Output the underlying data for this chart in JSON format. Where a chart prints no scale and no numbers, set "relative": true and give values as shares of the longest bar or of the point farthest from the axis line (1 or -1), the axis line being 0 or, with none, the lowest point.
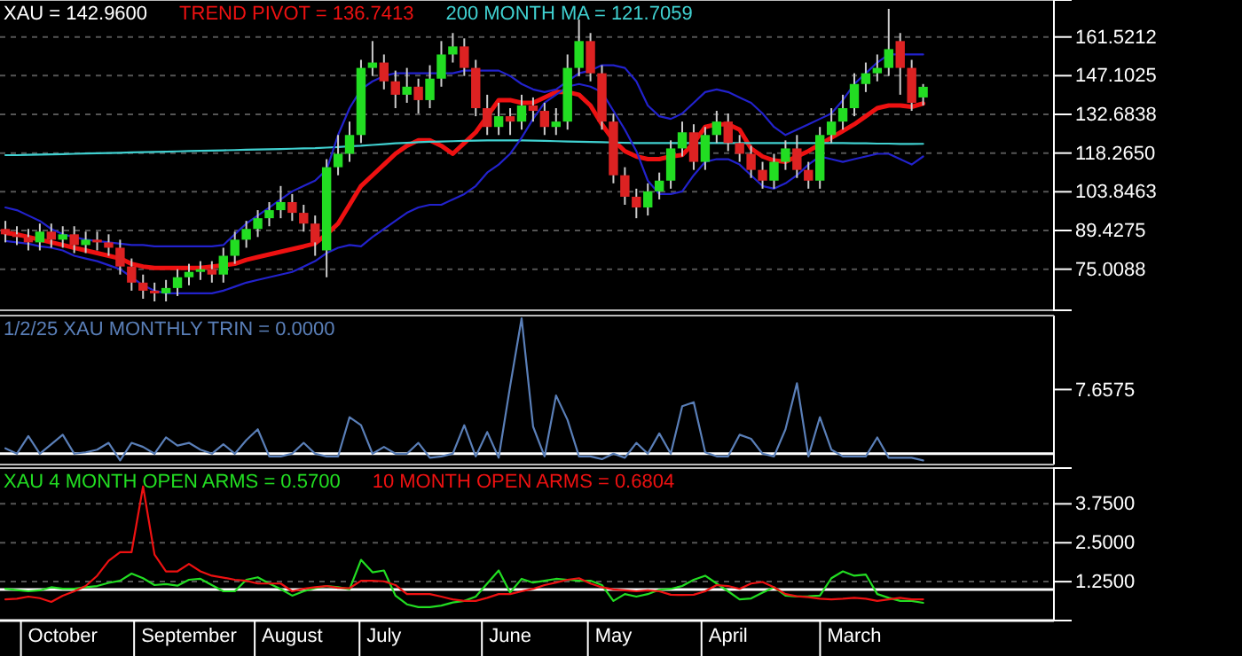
{
  "chart_data": [
    {
      "type": "candlestick",
      "title": "XAU = 142.9600",
      "legend": "top left",
      "grid": "y",
      "tick_labels": "y",
      "categories": [
        null,
        null,
        null,
        null,
        null,
        null,
        null,
        null,
        null,
        null,
        null,
        null,
        null,
        null,
        null,
        null,
        null,
        null,
        null,
        null,
        null,
        null,
        null,
        null,
        null,
        null,
        null,
        null,
        null,
        null,
        null,
        null,
        null,
        null,
        null,
        null,
        null,
        null,
        null,
        null,
        null,
        null,
        null,
        null,
        null,
        null,
        null,
        null,
        null,
        null,
        null,
        null,
        null,
        null,
        null,
        null,
        null,
        null,
        null,
        null,
        null,
        null,
        null,
        null,
        null,
        null,
        null,
        null,
        null,
        null,
        null,
        null,
        null,
        null,
        null,
        null,
        null,
        null,
        null,
        null,
        null
      ],
      "ylim": [
        59.7,
        175.3
      ],
      "yticks": [
        75.0088,
        89.4275,
        103.8463,
        {
          "value": 118.265,
          "label": "118.2650"
        },
        132.6838,
        147.1025,
        161.5212
      ],
      "ohlc": [
        [
          90,
          93,
          85,
          88
        ],
        [
          88,
          91,
          84,
          87
        ],
        [
          87,
          90,
          82,
          85
        ],
        [
          85,
          92,
          82,
          89
        ],
        [
          89,
          92,
          83,
          86
        ],
        [
          86,
          91,
          83,
          88
        ],
        [
          88,
          91,
          81,
          84
        ],
        [
          84,
          89,
          81,
          86
        ],
        [
          86,
          89,
          82,
          85
        ],
        [
          85,
          88,
          80,
          83
        ],
        [
          83,
          86,
          73,
          76
        ],
        [
          76,
          79,
          67,
          70
        ],
        [
          70,
          73,
          64,
          67
        ],
        [
          67,
          70,
          63,
          66
        ],
        [
          66,
          71,
          63,
          68
        ],
        [
          68,
          75,
          65,
          72
        ],
        [
          72,
          77,
          69,
          74
        ],
        [
          74,
          78,
          71,
          75
        ],
        [
          75,
          78,
          70,
          73
        ],
        [
          73,
          83,
          70,
          80
        ],
        [
          80,
          89,
          77,
          86
        ],
        [
          86,
          93,
          83,
          90
        ],
        [
          90,
          97,
          87,
          94
        ],
        [
          94,
          100,
          91,
          97
        ],
        [
          97,
          106,
          94,
          100
        ],
        [
          100,
          103,
          93,
          96
        ],
        [
          96,
          99,
          89,
          92
        ],
        [
          92,
          95,
          80,
          85
        ],
        [
          82,
          116,
          72,
          113
        ],
        [
          113,
          125,
          110,
          118
        ],
        [
          118,
          130,
          115,
          125
        ],
        [
          125,
          153,
          122,
          150
        ],
        [
          150,
          160,
          147,
          152
        ],
        [
          152,
          155,
          142,
          145
        ],
        [
          145,
          149,
          135,
          140
        ],
        [
          140,
          150,
          137,
          143
        ],
        [
          143,
          146,
          133,
          138
        ],
        [
          138,
          151,
          135,
          146
        ],
        [
          146,
          160,
          143,
          155
        ],
        [
          155,
          163,
          152,
          158
        ],
        [
          158,
          161,
          147,
          150
        ],
        [
          150,
          153,
          132,
          135
        ],
        [
          135,
          140,
          125,
          128
        ],
        [
          128,
          137,
          125,
          132
        ],
        [
          132,
          135,
          125,
          130
        ],
        [
          130,
          140,
          127,
          136
        ],
        [
          136,
          139,
          130,
          134
        ],
        [
          134,
          137,
          125,
          128
        ],
        [
          128,
          135,
          125,
          130
        ],
        [
          130,
          155,
          127,
          150
        ],
        [
          150,
          168,
          147,
          160
        ],
        [
          160,
          163,
          145,
          148
        ],
        [
          148,
          151,
          127,
          130
        ],
        [
          130,
          133,
          107,
          110
        ],
        [
          110,
          113,
          99,
          102
        ],
        [
          102,
          105,
          94,
          98
        ],
        [
          98,
          107,
          95,
          104
        ],
        [
          104,
          111,
          101,
          108
        ],
        [
          108,
          123,
          105,
          120
        ],
        [
          120,
          130,
          117,
          126
        ],
        [
          126,
          129,
          112,
          115
        ],
        [
          115,
          128,
          112,
          125
        ],
        [
          125,
          134,
          122,
          130
        ],
        [
          130,
          133,
          119,
          122
        ],
        [
          122,
          125,
          115,
          118
        ],
        [
          118,
          121,
          109,
          112
        ],
        [
          112,
          115,
          105,
          108
        ],
        [
          108,
          118,
          105,
          115
        ],
        [
          115,
          123,
          112,
          120
        ],
        [
          120,
          125,
          109,
          112
        ],
        [
          112,
          115,
          105,
          108
        ],
        [
          108,
          128,
          105,
          125
        ],
        [
          125,
          135,
          122,
          130
        ],
        [
          130,
          140,
          127,
          135
        ],
        [
          135,
          148,
          132,
          144
        ],
        [
          144,
          152,
          141,
          148
        ],
        [
          148,
          155,
          145,
          150
        ],
        [
          150,
          172,
          147,
          157
        ],
        [
          160,
          163,
          140,
          150
        ],
        [
          150,
          153,
          134,
          137
        ],
        [
          139,
          144,
          136,
          142.96
        ]
      ],
      "series": [
        {
          "type": "line",
          "name": "TREND PIVOT = 136.7413",
          "color": "#ee1111",
          "values": [
            88.5,
            88,
            87,
            86,
            85,
            84,
            83,
            82,
            81,
            80,
            79,
            77,
            76,
            75.5,
            75.5,
            75.5,
            75.5,
            75.5,
            76,
            76.5,
            77,
            78.5,
            79.5,
            80.5,
            81.5,
            82.5,
            83.5,
            84.6,
            88,
            92,
            99,
            106,
            110,
            114,
            118,
            121,
            123,
            123,
            121,
            118,
            122,
            126,
            132,
            138,
            138,
            137,
            137,
            139,
            141,
            141,
            140,
            136,
            129,
            123,
            119,
            117,
            116,
            116,
            117,
            117.6,
            122,
            128,
            129,
            129,
            127,
            120,
            117,
            115.5,
            115,
            117,
            119,
            121.5,
            124,
            126.5,
            129,
            132,
            135,
            136,
            136,
            135.5,
            136.7413
          ]
        },
        {
          "type": "line",
          "name": "200 MONTH MA = 121.7059",
          "color": "#40d0d0",
          "values": [
            117.5,
            117.5,
            117.6,
            117.7,
            117.8,
            117.9,
            118,
            118.1,
            118.2,
            118.3,
            118.4,
            118.5,
            118.6,
            118.7,
            118.8,
            118.9,
            119,
            119.1,
            119.2,
            119.3,
            119.4,
            119.5,
            119.6,
            119.7,
            119.8,
            119.9,
            120,
            120.1,
            120.3,
            120.5,
            120.8,
            121,
            121.3,
            121.6,
            121.9,
            122.1,
            122.3,
            122.5,
            122.6,
            122.7,
            122.8,
            122.9,
            123,
            123,
            123,
            123,
            122.9,
            122.8,
            122.7,
            122.6,
            122.5,
            122.4,
            122.3,
            122.2,
            122.1,
            122,
            122,
            122,
            122,
            122,
            122,
            122,
            122,
            122,
            122,
            122,
            122,
            122,
            122,
            122,
            122,
            122,
            122,
            122,
            121.9,
            121.9,
            121.8,
            121.8,
            121.7,
            121.7,
            121.7059
          ]
        },
        {
          "type": "line",
          "color": "#2222cc",
          "values": [
            98,
            97,
            95,
            93,
            90,
            88,
            87,
            86,
            85.5,
            85,
            84.5,
            84,
            84,
            83.5,
            83.5,
            83.5,
            83.5,
            83.5,
            83.5,
            84,
            88,
            92,
            95,
            98,
            101,
            104,
            106,
            108,
            112,
            125,
            135,
            142,
            145,
            147,
            148,
            148,
            148,
            148,
            148,
            148,
            149,
            149,
            149,
            149,
            147,
            144,
            142,
            141,
            142,
            145,
            148,
            149,
            151,
            151,
            150,
            145,
            136,
            132,
            131,
            133,
            137,
            141,
            142,
            141,
            139,
            137,
            133,
            128,
            125,
            127,
            129,
            131,
            133,
            138,
            144,
            148,
            152,
            155,
            155,
            155,
            155
          ]
        },
        {
          "type": "line",
          "color": "#2222cc",
          "values": [
            85.5,
            85,
            84.5,
            83.5,
            83,
            82,
            80,
            79,
            78,
            76.5,
            75,
            72,
            69,
            67,
            66,
            66,
            66,
            66,
            66,
            67,
            68.5,
            70,
            71,
            72,
            73,
            74,
            76,
            78,
            81,
            83,
            84,
            83.5,
            87,
            90,
            93,
            96,
            98,
            99,
            99,
            101,
            103,
            106,
            111,
            114,
            118,
            124,
            131,
            137,
            140,
            143,
            144,
            143,
            141,
            134,
            127,
            119,
            108,
            103,
            103,
            104,
            110,
            115,
            116,
            116,
            114,
            110,
            106,
            105,
            107,
            110,
            114,
            117,
            116,
            115,
            116,
            117,
            118,
            118,
            116,
            114,
            117
          ]
        }
      ]
    },
    {
      "type": "line",
      "relative": true,
      "tick_labels": false,
      "legend": "top left",
      "annotations": [
        "7.6575"
      ],
      "categories": [
        null,
        null,
        null,
        null,
        null,
        null,
        null,
        null,
        null,
        null,
        null,
        null,
        null,
        null,
        null,
        null,
        null,
        null,
        null,
        null,
        null,
        null,
        null,
        null,
        null,
        null,
        null,
        null,
        null,
        null,
        null,
        null,
        null,
        null,
        null,
        null,
        null,
        null,
        null,
        null,
        null,
        null,
        null,
        null,
        null,
        null,
        null,
        null,
        null,
        null,
        null,
        null,
        null,
        null,
        null,
        null,
        null,
        null,
        null,
        null,
        null,
        null,
        null,
        null,
        null,
        null,
        null,
        null,
        null,
        null,
        null,
        null,
        null,
        null,
        null,
        null,
        null,
        null,
        null,
        null,
        null
      ],
      "series": [
        {
          "name": "1/2/25 XAU MONTHLY TRIN = 0.0000",
          "color": "#5a7fb8",
          "values": [
            0.04,
            0,
            0.13,
            0,
            0.07,
            0.14,
            0,
            0.01,
            0.03,
            0.08,
            -0.05,
            0.08,
            0.05,
            0,
            0.12,
            0.06,
            0.08,
            0.03,
            0,
            0.07,
            0,
            0.1,
            0.18,
            -0.02,
            -0.02,
            0,
            0.08,
            0,
            -0.02,
            -0.02,
            0.27,
            0.21,
            0,
            0.05,
            0,
            0,
            0.08,
            -0.03,
            -0.02,
            0,
            0.21,
            -0.02,
            0.16,
            -0.03,
            0.5,
            1,
            0.2,
            -0.02,
            0.43,
            0.25,
            -0.02,
            -0.02,
            -0.04,
            0,
            -0.03,
            0.08,
            0,
            0.15,
            0,
            0.35,
            0.38,
            0.01,
            -0.02,
            -0.02,
            0.14,
            0.11,
            0,
            -0.02,
            0.18,
            0.52,
            -0.02,
            0.27,
            0.03,
            -0.02,
            -0.02,
            -0.02,
            0.12,
            -0.03,
            -0.03,
            -0.03,
            -0.05
          ]
        }
      ]
    },
    {
      "type": "line",
      "legend": "top left",
      "grid": "y",
      "ylim": [
        0,
        4.9
      ],
      "yticks": [
        {
          "value": 1.25,
          "label": "1.2500"
        },
        {
          "value": 2.5,
          "label": "2.5000"
        },
        {
          "value": 3.75,
          "label": "3.7500"
        }
      ],
      "ref_lines": [
        {
          "axis": "y",
          "value": 1,
          "color": "#ffffff"
        }
      ],
      "categories": [
        null,
        null,
        null,
        null,
        null,
        "October",
        null,
        null,
        null,
        null,
        null,
        null,
        null,
        null,
        null,
        null,
        "September",
        null,
        null,
        null,
        null,
        null,
        null,
        null,
        null,
        "August",
        null,
        null,
        null,
        null,
        null,
        null,
        null,
        "July",
        null,
        null,
        null,
        null,
        null,
        null,
        null,
        null,
        null,
        null,
        "June",
        null,
        null,
        null,
        null,
        null,
        null,
        null,
        null,
        "May",
        null,
        null,
        null,
        null,
        null,
        null,
        null,
        null,
        null,
        "April",
        null,
        null,
        null,
        null,
        null,
        null,
        null,
        null,
        null,
        null,
        "March",
        null,
        null,
        null,
        null,
        null,
        null
      ],
      "series": [
        {
          "name": "XAU 4 MONTH OPEN ARMS = 0.5700",
          "color": "#22dd22",
          "values": [
            1.02,
            0.98,
            0.94,
            0.97,
            1.07,
            1.02,
            1.02,
            1.07,
            1.11,
            1.21,
            1.28,
            1.51,
            1.36,
            1.14,
            1.17,
            1.12,
            1.31,
            1.34,
            1.14,
            0.94,
            0.94,
            1.31,
            1.39,
            1.19,
            1.01,
            0.8,
            0.94,
            1.04,
            1.11,
            1.07,
            1.01,
            1.95,
            1.55,
            1.61,
            0.8,
            0.52,
            0.43,
            0.43,
            0.48,
            0.58,
            0.63,
            0.77,
            1.19,
            1.61,
            0.9,
            1.34,
            1.22,
            1.28,
            1.34,
            1.31,
            1.28,
            1.28,
            1.14,
            0.63,
            0.85,
            0.77,
            0.85,
            0.99,
            1.02,
            1.11,
            1.31,
            1.44,
            1.19,
            0.94,
            0.68,
            0.71,
            0.9,
            1.07,
            0.8,
            0.77,
            0.78,
            0.8,
            1.36,
            1.58,
            1.44,
            1.48,
            0.85,
            0.73,
            0.63,
            0.63,
            0.57
          ]
        },
        {
          "name": "10 MONTH OPEN ARMS = 0.6804",
          "color": "#ee1111",
          "values": [
            0.68,
            0.7,
            0.77,
            0.72,
            0.6,
            0.8,
            0.94,
            1.11,
            1.44,
            1.92,
            2.2,
            2.2,
            4.31,
            2.12,
            1.58,
            1.58,
            1.82,
            1.58,
            1.44,
            1.38,
            1.31,
            1.28,
            1.19,
            1.19,
            1.19,
            0.94,
            1.02,
            1.07,
            1.11,
            1.05,
            1.04,
            1.28,
            1.28,
            1.26,
            1.14,
            0.85,
            0.85,
            0.85,
            0.77,
            0.68,
            0.63,
            0.63,
            0.73,
            0.85,
            0.85,
            0.94,
            1.02,
            1.14,
            1.22,
            1.31,
            1.36,
            1.19,
            1.07,
            1,
            0.97,
            0.94,
            0.97,
            0.94,
            0.83,
            0.82,
            0.83,
            0.94,
            1.14,
            1.11,
            1.02,
            1.19,
            1.24,
            1.07,
            0.85,
            0.78,
            0.75,
            0.7,
            0.68,
            0.7,
            0.73,
            0.7,
            0.63,
            0.68,
            0.73,
            0.68,
            0.6804
          ]
        }
      ]
    }
  ]
}
